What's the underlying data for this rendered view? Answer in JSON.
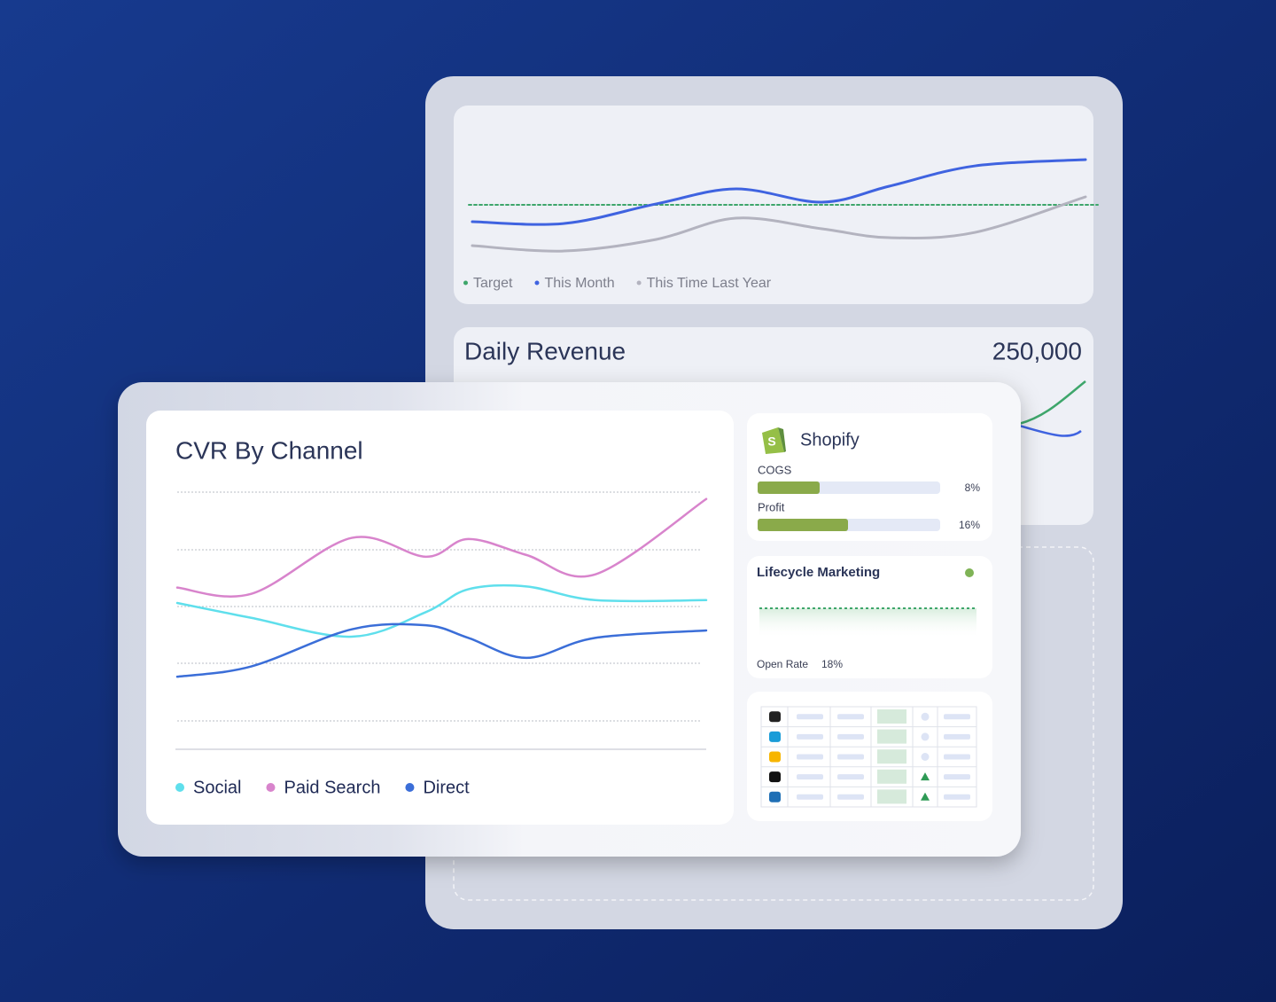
{
  "chart_data": [
    {
      "type": "line",
      "x": [
        0,
        15,
        30,
        43,
        57,
        68,
        82,
        100
      ],
      "xlim": [
        0,
        100
      ],
      "ylim": [
        0,
        10
      ],
      "series": [
        {
          "name": "Target",
          "color": "#3ea66b",
          "dashed": true,
          "values": [
            4.6,
            4.6,
            4.6,
            4.6,
            4.6,
            4.6,
            4.6,
            4.6
          ]
        },
        {
          "name": "This Month",
          "color": "#3f63e0",
          "dashed": false,
          "values": [
            3.33,
            3.2,
            4.67,
            5.8,
            4.8,
            6.0,
            7.53,
            8.0
          ]
        },
        {
          "name": "This Time Last Year",
          "color": "#b3b3bf",
          "dashed": false,
          "values": [
            1.53,
            1.13,
            2.0,
            3.6,
            2.8,
            2.13,
            2.53,
            5.2
          ]
        }
      ]
    },
    {
      "type": "line",
      "title": "CVR By Channel",
      "x": [
        0,
        14,
        33,
        47,
        55,
        66,
        79,
        100
      ],
      "xlim": [
        0,
        100
      ],
      "ylim": [
        0.5,
        5
      ],
      "series": [
        {
          "name": "Social",
          "color": "#5fdfec",
          "dashed": false,
          "values": [
            3.06,
            2.8,
            2.47,
            2.9,
            3.3,
            3.35,
            3.11,
            3.11
          ]
        },
        {
          "name": "Paid Search",
          "color": "#d884cc",
          "dashed": false,
          "values": [
            3.33,
            3.22,
            4.2,
            3.87,
            4.18,
            3.9,
            3.56,
            4.88
          ]
        },
        {
          "name": "Direct",
          "color": "#3b6ed8",
          "dashed": false,
          "values": [
            1.77,
            1.95,
            2.6,
            2.67,
            2.45,
            2.1,
            2.45,
            2.58
          ]
        }
      ]
    }
  ],
  "daily_revenue": {
    "title": "Daily Revenue",
    "value": "250,000"
  },
  "shopify": {
    "title": "Shopify",
    "rows": [
      {
        "label": "COGS",
        "value": "8%"
      },
      {
        "label": "Profit",
        "value": "16%"
      }
    ]
  },
  "lifecycle": {
    "title": "Lifecycle Marketing",
    "metric": "Open Rate",
    "value": "18%"
  }
}
